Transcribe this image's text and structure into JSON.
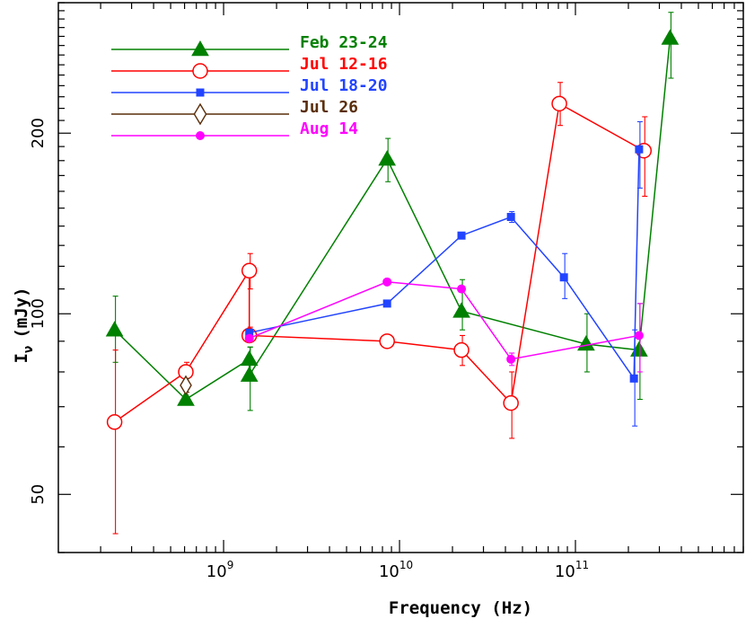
{
  "chart_data": {
    "type": "line",
    "xlabel": "Frequency  (Hz)",
    "ylabel": "I",
    "ylabel_subscript": "ν",
    "ylabel_unit": "(mJy)",
    "x_scale": "log",
    "y_scale": "log",
    "xlim": [
      115000000.0,
      900000000000.0
    ],
    "ylim": [
      40,
      330
    ],
    "x_ticks": [
      {
        "value": 1000000000.0,
        "base": "10",
        "exp": "9"
      },
      {
        "value": 10000000000.0,
        "base": "10",
        "exp": "10"
      },
      {
        "value": 100000000000.0,
        "base": "10",
        "exp": "11"
      }
    ],
    "y_ticks": [
      {
        "value": 50,
        "label": "50"
      },
      {
        "value": 100,
        "label": "100"
      },
      {
        "value": 200,
        "label": "200"
      }
    ],
    "legend_position": "top-left",
    "grid": false,
    "series": [
      {
        "name": "Feb 23-24",
        "color": "#008000",
        "marker": "filled-triangle",
        "points": [
          {
            "x": 240000000.0,
            "y": 94,
            "ylo": 83,
            "yhi": 107
          },
          {
            "x": 610000000.0,
            "y": 72
          },
          {
            "x": 1400000000.0,
            "y": 84,
            "ylo": 80,
            "yhi": 88
          },
          {
            "x": 1400000000.0,
            "y": 79,
            "ylo": 69,
            "yhi": 88
          },
          {
            "x": 8500000000.0,
            "y": 181,
            "ylo": 166,
            "yhi": 196
          },
          {
            "x": 22500000000.0,
            "y": 101,
            "ylo": 94,
            "yhi": 114
          },
          {
            "x": 115000000000.0,
            "y": 89,
            "ylo": 80,
            "yhi": 100
          },
          {
            "x": 230000000000.0,
            "y": 87,
            "ylo": 72,
            "yhi": 104
          },
          {
            "x": 345000000000.0,
            "y": 288,
            "ylo": 247,
            "yhi": 318
          }
        ]
      },
      {
        "name": "Jul 12-16",
        "color": "#ff0000",
        "marker": "open-circle",
        "points": [
          {
            "x": 240000000.0,
            "y": 66,
            "ylo": 43,
            "yhi": 87
          },
          {
            "x": 610000000.0,
            "y": 80,
            "ylo": 77,
            "yhi": 83
          },
          {
            "x": 1400000000.0,
            "y": 118,
            "ylo": 110,
            "yhi": 126
          },
          {
            "x": 1400000000.0,
            "y": 92,
            "ylo": 90,
            "yhi": 95
          },
          {
            "x": 8500000000.0,
            "y": 90,
            "ylo": 88,
            "yhi": 92
          },
          {
            "x": 22500000000.0,
            "y": 87,
            "ylo": 82,
            "yhi": 92
          },
          {
            "x": 43000000000.0,
            "y": 71,
            "ylo": 62,
            "yhi": 80
          },
          {
            "x": 81000000000.0,
            "y": 224,
            "ylo": 206,
            "yhi": 243
          },
          {
            "x": 245000000000.0,
            "y": 187,
            "ylo": 157,
            "yhi": 213
          }
        ]
      },
      {
        "name": "Jul 18-20",
        "color": "#2244ff",
        "marker": "filled-square",
        "points": [
          {
            "x": 1400000000.0,
            "y": 93,
            "ylo": 92,
            "yhi": 94
          },
          {
            "x": 8500000000.0,
            "y": 104,
            "ylo": 103,
            "yhi": 105
          },
          {
            "x": 22500000000.0,
            "y": 135,
            "ylo": 134,
            "yhi": 136
          },
          {
            "x": 43000000000.0,
            "y": 145,
            "ylo": 142,
            "yhi": 148
          },
          {
            "x": 86000000000.0,
            "y": 115,
            "ylo": 106,
            "yhi": 126
          },
          {
            "x": 215000000000.0,
            "y": 78,
            "ylo": 65,
            "yhi": 94
          },
          {
            "x": 230000000000.0,
            "y": 188,
            "ylo": 162,
            "yhi": 209
          }
        ]
      },
      {
        "name": "Jul 26",
        "color": "#5a2e0a",
        "marker": "open-diamond",
        "points": [
          {
            "x": 610000000.0,
            "y": 76,
            "ylo": 74,
            "yhi": 78
          }
        ]
      },
      {
        "name": "Aug 14",
        "color": "#ff00ff",
        "marker": "filled-circle",
        "points": [
          {
            "x": 1400000000.0,
            "y": 91,
            "ylo": 90,
            "yhi": 92
          },
          {
            "x": 8500000000.0,
            "y": 113,
            "ylo": 112,
            "yhi": 114
          },
          {
            "x": 22500000000.0,
            "y": 110,
            "ylo": 109,
            "yhi": 111
          },
          {
            "x": 43000000000.0,
            "y": 84,
            "ylo": 82,
            "yhi": 86
          },
          {
            "x": 230000000000.0,
            "y": 92,
            "ylo": 80,
            "yhi": 104
          }
        ]
      }
    ]
  }
}
